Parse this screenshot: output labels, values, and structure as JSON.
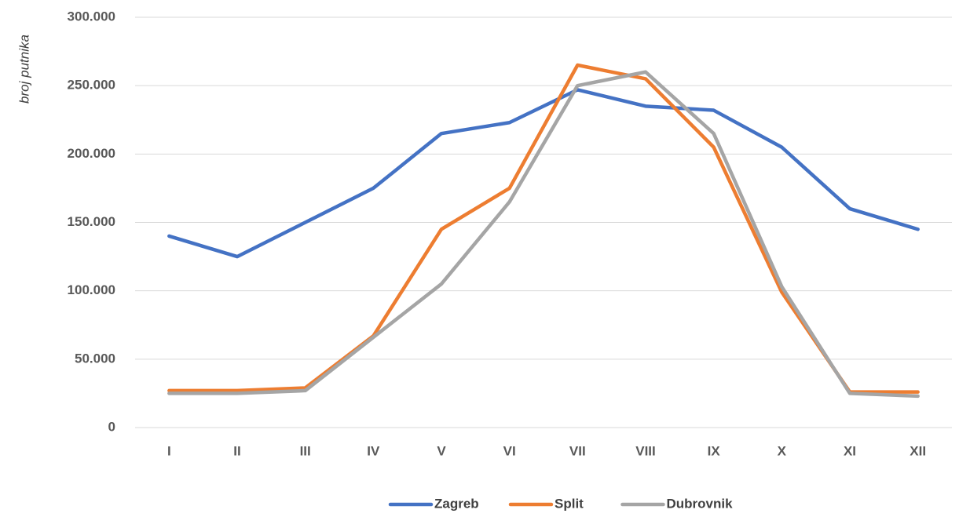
{
  "chart_data": {
    "type": "line",
    "y_label": "broj putnika",
    "categories": [
      "I",
      "II",
      "III",
      "IV",
      "V",
      "VI",
      "VII",
      "VIII",
      "IX",
      "X",
      "XI",
      "XII"
    ],
    "series": [
      {
        "name": "Zagreb",
        "color": "#4472c4",
        "values": [
          140000,
          125000,
          150000,
          175000,
          215000,
          223000,
          247000,
          235000,
          232000,
          205000,
          160000,
          145000
        ]
      },
      {
        "name": "Split",
        "color": "#ed7d31",
        "values": [
          27000,
          27000,
          29000,
          67000,
          145000,
          175000,
          265000,
          255000,
          205000,
          99000,
          26000,
          26000
        ]
      },
      {
        "name": "Dubrovnik",
        "color": "#a5a5a5",
        "values": [
          25000,
          25000,
          27000,
          66000,
          105000,
          165000,
          250000,
          260000,
          215000,
          103000,
          25000,
          23000
        ]
      }
    ],
    "ylim": [
      0,
      300000
    ],
    "yticks": [
      0,
      {
        "value": 50000,
        "label": "50.000"
      },
      {
        "value": 100000,
        "label": "100.000"
      },
      {
        "value": 150000,
        "label": "150.000"
      },
      {
        "value": 200000,
        "label": "200.000"
      },
      {
        "value": 250000,
        "label": "250.000"
      },
      {
        "value": 300000,
        "label": "300.000"
      }
    ],
    "grid": true,
    "legend": "bottom"
  }
}
